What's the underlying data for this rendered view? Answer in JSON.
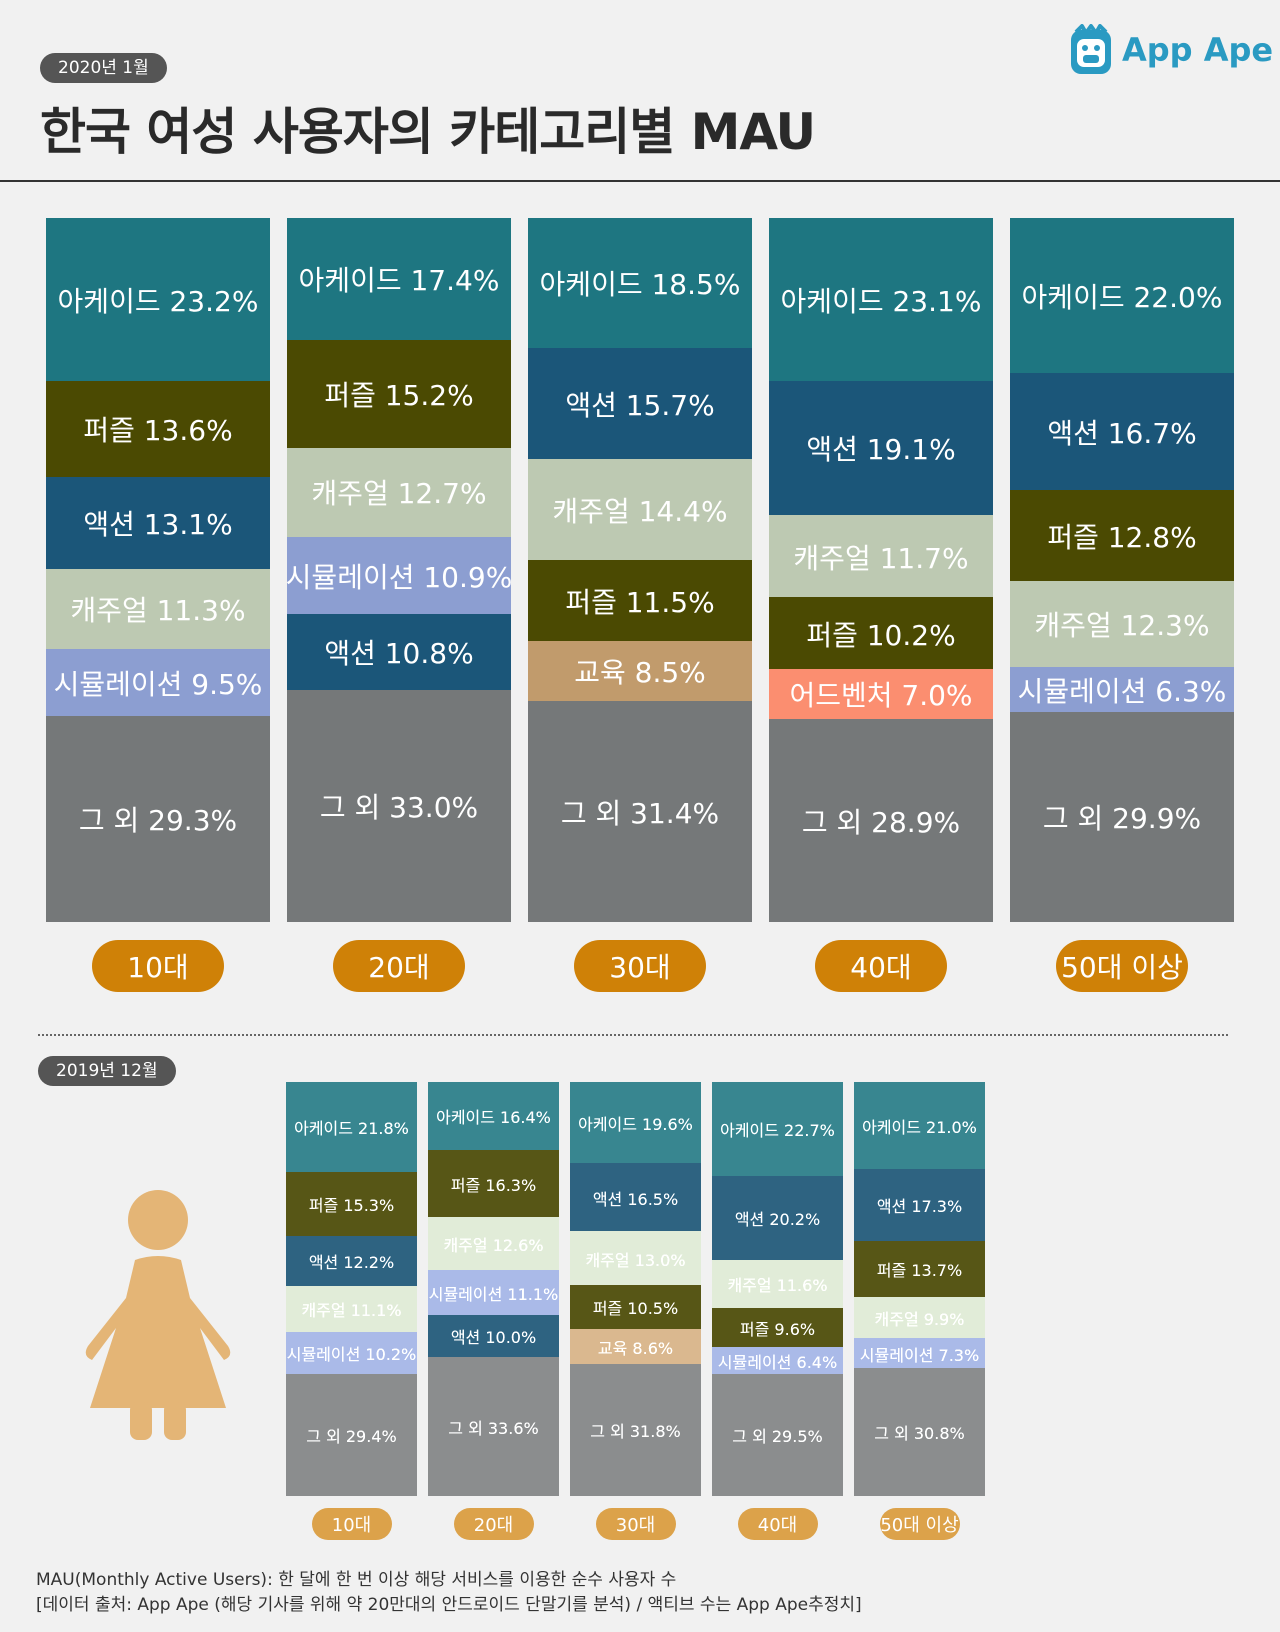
{
  "header": {
    "date_2020": "2020년 1월",
    "title": "한국 여성 사용자의 카테고리별 MAU",
    "logo_text": "App Ape"
  },
  "section_2019": {
    "date": "2019년 12월"
  },
  "colors": {
    "아케이드": "#1e7681",
    "퍼즐": "#4b4a02",
    "액션": "#1b5679",
    "캐주얼": "#bdc9b2",
    "시뮬레이션": "#8c9ed1",
    "교육": "#c19b6c",
    "어드벤처": "#fb8e70",
    "그 외": "#757879",
    "pill": "#cf8107",
    "pill_2019": "#dca24a",
    "figure": "#e4b576"
  },
  "chart_data": [
    {
      "type": "stacked-bar",
      "subtitle": "2020년 1월",
      "title": "한국 여성 사용자의 카테고리별 MAU",
      "unit": "%",
      "categories": [
        "10대",
        "20대",
        "30대",
        "40대",
        "50대 이상"
      ],
      "stacks": [
        [
          {
            "label": "아케이드",
            "value": 23.2,
            "display": "아케이드 23.2%"
          },
          {
            "label": "퍼즐",
            "value": 13.6,
            "display": "퍼즐 13.6%"
          },
          {
            "label": "액션",
            "value": 13.1,
            "display": "액션 13.1%"
          },
          {
            "label": "캐주얼",
            "value": 11.3,
            "display": "캐주얼 11.3%"
          },
          {
            "label": "시뮬레이션",
            "value": 9.5,
            "display": "시뮬레이션 9.5%"
          },
          {
            "label": "그 외",
            "value": 29.3,
            "display": "그 외 29.3%"
          }
        ],
        [
          {
            "label": "아케이드",
            "value": 17.4,
            "display": "아케이드 17.4%"
          },
          {
            "label": "퍼즐",
            "value": 15.2,
            "display": "퍼즐 15.2%"
          },
          {
            "label": "캐주얼",
            "value": 12.7,
            "display": "캐주얼 12.7%"
          },
          {
            "label": "시뮬레이션",
            "value": 10.9,
            "display": "시뮬레이션 10.9%"
          },
          {
            "label": "액션",
            "value": 10.8,
            "display": "액션 10.8%"
          },
          {
            "label": "그 외",
            "value": 33.0,
            "display": "그 외 33.0%"
          }
        ],
        [
          {
            "label": "아케이드",
            "value": 18.5,
            "display": "아케이드 18.5%"
          },
          {
            "label": "액션",
            "value": 15.7,
            "display": "액션 15.7%"
          },
          {
            "label": "캐주얼",
            "value": 14.4,
            "display": "캐주얼 14.4%"
          },
          {
            "label": "퍼즐",
            "value": 11.5,
            "display": "퍼즐 11.5%"
          },
          {
            "label": "교육",
            "value": 8.5,
            "display": "교육 8.5%"
          },
          {
            "label": "그 외",
            "value": 31.4,
            "display": "그 외 31.4%"
          }
        ],
        [
          {
            "label": "아케이드",
            "value": 23.1,
            "display": "아케이드 23.1%"
          },
          {
            "label": "액션",
            "value": 19.1,
            "display": "액션 19.1%"
          },
          {
            "label": "캐주얼",
            "value": 11.7,
            "display": "캐주얼 11.7%"
          },
          {
            "label": "퍼즐",
            "value": 10.2,
            "display": "퍼즐 10.2%"
          },
          {
            "label": "어드벤처",
            "value": 7.0,
            "display": "어드벤처 7.0%"
          },
          {
            "label": "그 외",
            "value": 28.9,
            "display": "그 외 28.9%"
          }
        ],
        [
          {
            "label": "아케이드",
            "value": 22.0,
            "display": "아케이드 22.0%"
          },
          {
            "label": "액션",
            "value": 16.7,
            "display": "액션 16.7%"
          },
          {
            "label": "퍼즐",
            "value": 12.8,
            "display": "퍼즐 12.8%"
          },
          {
            "label": "캐주얼",
            "value": 12.3,
            "display": "캐주얼 12.3%"
          },
          {
            "label": "시뮬레이션",
            "value": 6.3,
            "display": "시뮬레이션 6.3%"
          },
          {
            "label": "그 외",
            "value": 29.9,
            "display": "그 외 29.9%"
          }
        ]
      ]
    },
    {
      "type": "stacked-bar",
      "subtitle": "2019년 12월",
      "unit": "%",
      "categories": [
        "10대",
        "20대",
        "30대",
        "40대",
        "50대 이상"
      ],
      "stacks": [
        [
          {
            "label": "아케이드",
            "value": 21.8,
            "display": "아케이드 21.8%"
          },
          {
            "label": "퍼즐",
            "value": 15.3,
            "display": "퍼즐 15.3%"
          },
          {
            "label": "액션",
            "value": 12.2,
            "display": "액션 12.2%"
          },
          {
            "label": "캐주얼",
            "value": 11.1,
            "display": "캐주얼 11.1%"
          },
          {
            "label": "시뮬레이션",
            "value": 10.2,
            "display": "시뮬레이션 10.2%"
          },
          {
            "label": "그 외",
            "value": 29.4,
            "display": "그 외 29.4%"
          }
        ],
        [
          {
            "label": "아케이드",
            "value": 16.4,
            "display": "아케이드 16.4%"
          },
          {
            "label": "퍼즐",
            "value": 16.3,
            "display": "퍼즐 16.3%"
          },
          {
            "label": "캐주얼",
            "value": 12.6,
            "display": "캐주얼 12.6%"
          },
          {
            "label": "시뮬레이션",
            "value": 11.1,
            "display": "시뮬레이션 11.1%"
          },
          {
            "label": "액션",
            "value": 10.0,
            "display": "액션 10.0%"
          },
          {
            "label": "그 외",
            "value": 33.6,
            "display": "그 외 33.6%"
          }
        ],
        [
          {
            "label": "아케이드",
            "value": 19.6,
            "display": "아케이드 19.6%"
          },
          {
            "label": "액션",
            "value": 16.5,
            "display": "액션 16.5%"
          },
          {
            "label": "캐주얼",
            "value": 13.0,
            "display": "캐주얼 13.0%"
          },
          {
            "label": "퍼즐",
            "value": 10.5,
            "display": "퍼즐 10.5%"
          },
          {
            "label": "교육",
            "value": 8.6,
            "display": "교육 8.6%"
          },
          {
            "label": "그 외",
            "value": 31.8,
            "display": "그 외 31.8%"
          }
        ],
        [
          {
            "label": "아케이드",
            "value": 22.7,
            "display": "아케이드 22.7%"
          },
          {
            "label": "액션",
            "value": 20.2,
            "display": "액션 20.2%"
          },
          {
            "label": "캐주얼",
            "value": 11.6,
            "display": "캐주얼 11.6%"
          },
          {
            "label": "퍼즐",
            "value": 9.6,
            "display": "퍼즐 9.6%"
          },
          {
            "label": "시뮬레이션",
            "value": 6.4,
            "display": "시뮬레이션 6.4%"
          },
          {
            "label": "그 외",
            "value": 29.5,
            "display": "그 외 29.5%"
          }
        ],
        [
          {
            "label": "아케이드",
            "value": 21.0,
            "display": "아케이드 21.0%"
          },
          {
            "label": "액션",
            "value": 17.3,
            "display": "액션 17.3%"
          },
          {
            "label": "퍼즐",
            "value": 13.7,
            "display": "퍼즐 13.7%"
          },
          {
            "label": "캐주얼",
            "value": 9.9,
            "display": "캐주얼 9.9%"
          },
          {
            "label": "시뮬레이션",
            "value": 7.3,
            "display": "시뮬레이션 7.3%"
          },
          {
            "label": "그 외",
            "value": 30.8,
            "display": "그 외 30.8%"
          }
        ]
      ]
    }
  ],
  "footnote": {
    "line1": "MAU(Monthly Active Users):  한 달에 한 번 이상 해당 서비스를 이용한 순수 사용자 수",
    "line2": "[데이터 출처: App Ape (해당 기사를 위해 약 20만대의 안드로이드 단말기를 분석) / 액티브 수는 App Ape추정치]"
  }
}
